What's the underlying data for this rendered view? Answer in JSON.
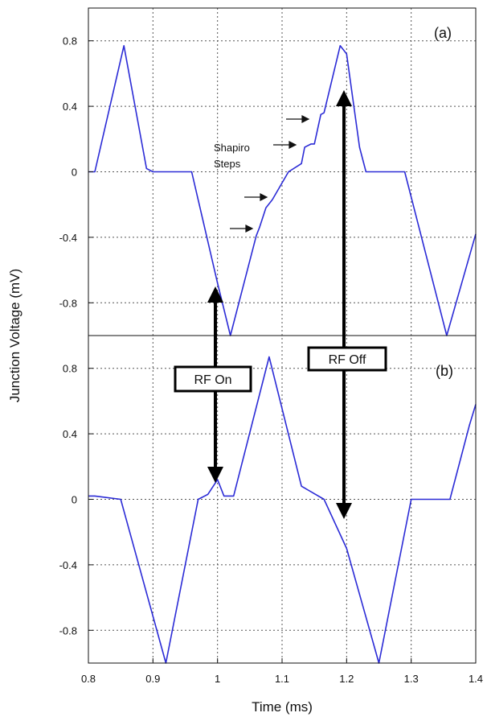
{
  "chart_data": {
    "type": "line",
    "xlabel": "Time (ms)",
    "ylabel": "Junction Voltage (mV)",
    "xlim": [
      0.8,
      1.4
    ],
    "xticks": [
      "0.8",
      "0.9",
      "1",
      "1.1",
      "1.2",
      "1.3",
      "1.4"
    ],
    "grid": true,
    "line_color": "#2b2bd6",
    "panels": [
      {
        "label": "(a)",
        "ylim": [
          -1.0,
          1.0
        ],
        "yticks": [
          "0.8",
          "0.4",
          "0",
          "-0.4",
          "-0.8"
        ],
        "series": [
          {
            "x": [
              0.8,
              0.81,
              0.855,
              0.89,
              0.9,
              0.96,
              1.0,
              1.02,
              1.06,
              1.065,
              1.075,
              1.085,
              1.11,
              1.13,
              1.135,
              1.145,
              1.15,
              1.16,
              1.165,
              1.19,
              1.2,
              1.22,
              1.23,
              1.29,
              1.355,
              1.4
            ],
            "y": [
              0.0,
              0.0,
              0.77,
              0.02,
              0.0,
              0.0,
              -0.68,
              -1.0,
              -0.39,
              -0.34,
              -0.22,
              -0.17,
              0.0,
              0.05,
              0.15,
              0.17,
              0.17,
              0.35,
              0.36,
              0.77,
              0.72,
              0.15,
              0.0,
              0.0,
              -1.0,
              -0.38
            ]
          }
        ],
        "annotations": [
          "Shapiro",
          "Steps"
        ]
      },
      {
        "label": "(b)",
        "ylim": [
          -1.0,
          1.0
        ],
        "yticks": [
          "0.8",
          "0.4",
          "0",
          "-0.4",
          "-0.8"
        ],
        "series": [
          {
            "x": [
              0.8,
              0.81,
              0.85,
              0.92,
              0.97,
              0.985,
              1.0,
              1.01,
              1.025,
              1.08,
              1.13,
              1.165,
              1.2,
              1.25,
              1.3,
              1.31,
              1.36,
              1.39,
              1.4
            ],
            "y": [
              0.02,
              0.02,
              0.0,
              -1.0,
              0.0,
              0.03,
              0.12,
              0.02,
              0.02,
              0.87,
              0.08,
              0.0,
              -0.3,
              -1.0,
              0.0,
              0.0,
              0.0,
              0.45,
              0.58
            ]
          }
        ]
      }
    ],
    "callouts": [
      {
        "label": "RF On",
        "x": 1.0
      },
      {
        "label": "RF Off",
        "x": 1.2
      }
    ]
  }
}
